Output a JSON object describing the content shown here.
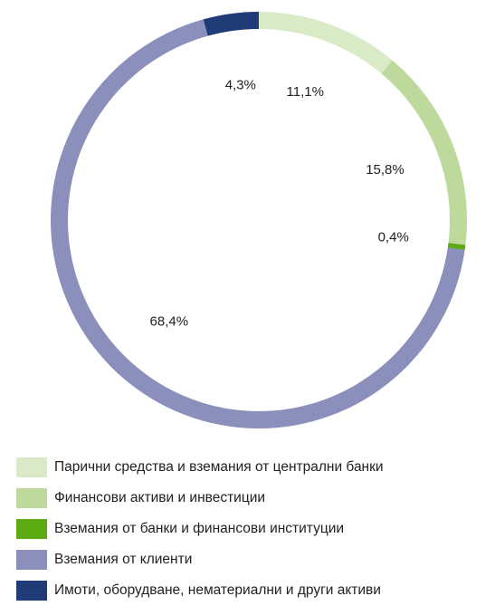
{
  "chart_data": {
    "type": "donut",
    "categories": [
      "Парични средства и вземания от централни банки",
      "Финансови активи и инвестиции",
      "Вземания от банки и финансови институции",
      "Вземания от клиенти",
      "Имоти, оборудване, нематериални и други активи"
    ],
    "values": [
      11.1,
      15.8,
      0.4,
      68.4,
      4.3
    ],
    "value_labels": [
      "11,1%",
      "15,8%",
      "0,4%",
      "68,4%",
      "4,3%"
    ],
    "colors": [
      "#d9eac6",
      "#bdd99b",
      "#5cab12",
      "#8a8fbb",
      "#1f3b78"
    ],
    "legend": "bottom"
  }
}
